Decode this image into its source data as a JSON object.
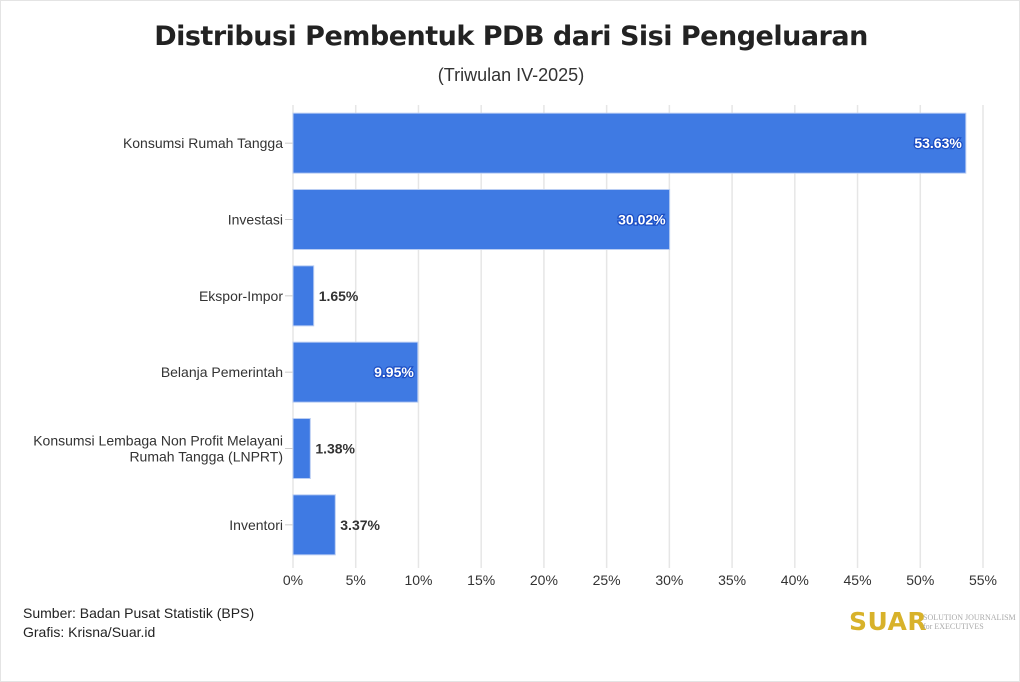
{
  "chart_data": {
    "type": "bar",
    "orientation": "horizontal",
    "title": "Distribusi Pembentuk PDB dari Sisi Pengeluaran",
    "subtitle": "(Triwulan IV-2025)",
    "categories": [
      "Konsumsi Rumah Tangga",
      "Investasi",
      "Ekspor-Impor",
      "Belanja Pemerintah",
      "Konsumsi Lembaga Non Profit Melayani|Rumah Tangga (LNPRT)",
      "Inventori"
    ],
    "values": [
      53.63,
      30.02,
      1.65,
      9.95,
      1.38,
      3.37
    ],
    "data_labels": [
      "53.63%",
      "30.02%",
      "1.65%",
      "9.95%",
      "1.38%",
      "3.37%"
    ],
    "xlim": [
      0,
      55
    ],
    "xticks": [
      "0%",
      "5%",
      "10%",
      "15%",
      "20%",
      "25%",
      "30%",
      "35%",
      "40%",
      "45%",
      "50%",
      "55%"
    ],
    "grid": true,
    "bar_color": "#3f7ae3"
  },
  "footer": {
    "source": "Sumber: Badan Pusat Statistik (BPS)",
    "credit": "Grafis: Krisna/Suar.id",
    "logo": "SUAR",
    "logo_tagline": [
      "SOLUTION JOURNALISM",
      "for EXECUTIVES"
    ]
  }
}
